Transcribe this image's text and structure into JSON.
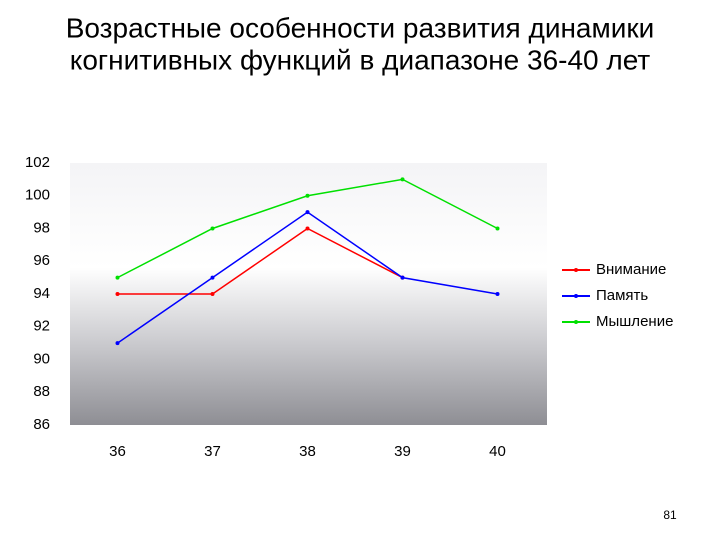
{
  "chart_data": {
    "type": "line",
    "title": [
      "Возрастные особенности развития  динамики",
      "когнитивных функций в диапазоне 36-40 лет"
    ],
    "categories": [
      "36",
      "37",
      "38",
      "39",
      "40"
    ],
    "series": [
      {
        "name": "Внимание",
        "color": "#ff0000",
        "values": [
          94,
          94,
          98,
          95,
          null
        ]
      },
      {
        "name": "Память",
        "color": "#0000ff",
        "values": [
          91,
          95,
          99,
          95,
          94
        ]
      },
      {
        "name": "Мышление",
        "color": "#00e000",
        "values": [
          95,
          98,
          100,
          101,
          98
        ]
      }
    ],
    "ylim": [
      86,
      102
    ],
    "yticks": [
      86,
      88,
      90,
      92,
      94,
      96,
      98,
      100,
      102
    ],
    "legend": "right"
  },
  "slide": {
    "page_number": "81"
  }
}
